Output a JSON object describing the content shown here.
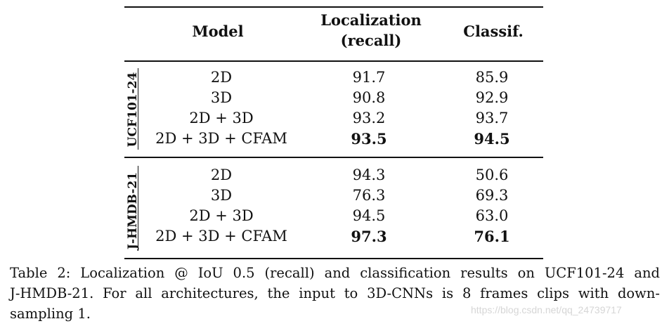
{
  "table": {
    "headers": {
      "model": "Model",
      "localization_line1": "Localization",
      "localization_line2": "(recall)",
      "classification": "Classif."
    },
    "groups": [
      {
        "label": "UCF101-24",
        "rows": [
          {
            "model": "2D",
            "localization": "91.7",
            "classification": "85.9",
            "bold": false
          },
          {
            "model": "3D",
            "localization": "90.8",
            "classification": "92.9",
            "bold": false
          },
          {
            "model": "2D + 3D",
            "localization": "93.2",
            "classification": "93.7",
            "bold": false
          },
          {
            "model": "2D + 3D + CFAM",
            "localization": "93.5",
            "classification": "94.5",
            "bold": true
          }
        ]
      },
      {
        "label": "J-HMDB-21",
        "rows": [
          {
            "model": "2D",
            "localization": "94.3",
            "classification": "50.6",
            "bold": false
          },
          {
            "model": "3D",
            "localization": "76.3",
            "classification": "69.3",
            "bold": false
          },
          {
            "model": "2D + 3D",
            "localization": "94.5",
            "classification": "63.0",
            "bold": false
          },
          {
            "model": "2D + 3D + CFAM",
            "localization": "97.3",
            "classification": "76.1",
            "bold": true
          }
        ]
      }
    ]
  },
  "caption": {
    "line1": "Table 2: Localization @ IoU 0.5 (recall) and classification results on UCF101-24 and",
    "line2": "J-HMDB-21. For all architectures, the input to 3D-CNNs is 8 frames clips with down-",
    "line3": "sampling 1."
  },
  "watermark": "https://blog.csdn.net/qq_24739717"
}
